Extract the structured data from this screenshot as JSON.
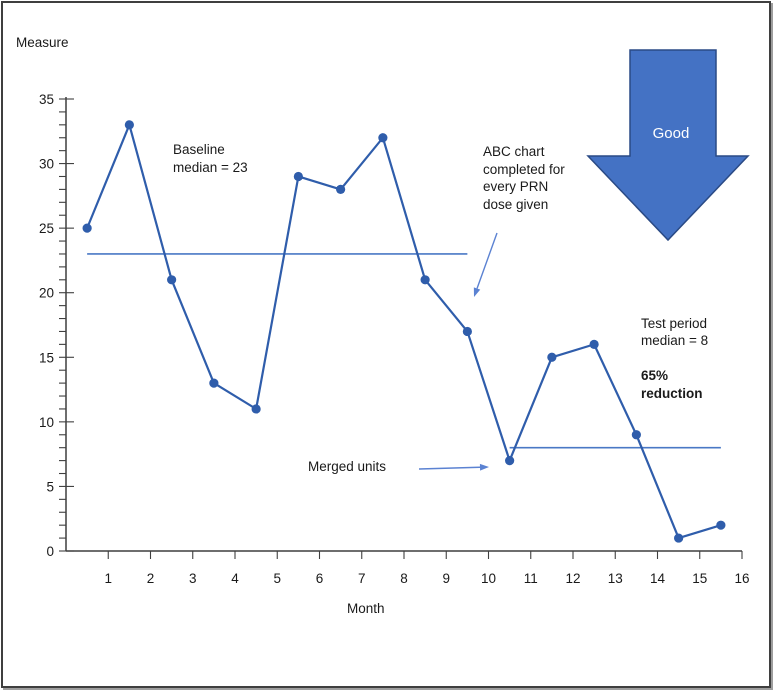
{
  "chart_data": {
    "type": "line",
    "title": "",
    "xlabel": "Month",
    "ylabel": "Measure",
    "x": [
      0.5,
      1.5,
      2.5,
      3.5,
      4.5,
      5.5,
      6.5,
      7.5,
      8.5,
      9.5,
      10.5,
      11.5,
      12.5,
      13.5,
      14.5,
      15.5
    ],
    "values": [
      25,
      33,
      21,
      13,
      11,
      29,
      28,
      32,
      21,
      17,
      7,
      15,
      16,
      9,
      1,
      2
    ],
    "xlim": [
      0,
      16
    ],
    "ylim": [
      0,
      35
    ],
    "xticks": [
      1,
      2,
      3,
      4,
      5,
      6,
      7,
      8,
      9,
      10,
      11,
      12,
      13,
      14,
      15,
      16
    ],
    "yticks_major": [
      0,
      5,
      10,
      15,
      20,
      25,
      30,
      35
    ],
    "ytick_minor_step": 1,
    "grid": false,
    "legend": "none",
    "medians": [
      {
        "name": "baseline-median",
        "label": "Baseline median = 23",
        "value": 23,
        "x_start": 0.5,
        "x_end": 9.5
      },
      {
        "name": "test-period-median",
        "label": "Test period median = 8",
        "value": 8,
        "x_start": 10.5,
        "x_end": 15.5
      }
    ]
  },
  "annotations": {
    "baseline": {
      "text": "Baseline\nmedian = 23"
    },
    "abc": {
      "text": "ABC chart\ncompleted for\nevery PRN\ndose given"
    },
    "merged": {
      "text": "Merged units"
    },
    "test_period": {
      "text": "Test period\nmedian = 8",
      "bold_text": "65%\nreduction"
    }
  },
  "good_arrow": {
    "label": "Good"
  },
  "colors": {
    "series": "#2f5dab",
    "median_line": "#4a78c5",
    "leader_arrow": "#5b82d2",
    "good_arrow_fill": "#4472c4",
    "good_arrow_stroke": "#2a4a85",
    "axis": "#3f3f3f",
    "text": "#1a1a1a",
    "frame_border": "#3f3f3f"
  }
}
